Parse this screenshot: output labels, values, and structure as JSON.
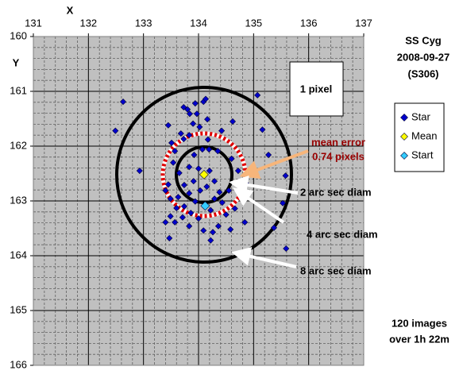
{
  "chart_data": {
    "type": "scatter",
    "title_lines": [
      "SS Cyg",
      "2008-09-27",
      "(S306)"
    ],
    "x_label": "X",
    "y_label": "Y",
    "xlim": [
      131,
      137
    ],
    "ylim": [
      160,
      166
    ],
    "xticks": [
      131,
      132,
      133,
      134,
      135,
      136,
      137
    ],
    "yticks": [
      160,
      161,
      162,
      163,
      164,
      165,
      166
    ],
    "y_reversed": true,
    "x_axis_position": "top",
    "grid": true,
    "legend_position": "right",
    "series": [
      {
        "name": "Star",
        "color": "#0000cc",
        "x": [
          132.63,
          132.49,
          132.93,
          133.4,
          133.47,
          133.45,
          133.51,
          133.57,
          133.68,
          133.73,
          133.8,
          133.84,
          133.94,
          133.97,
          134.09,
          134.13,
          134.02,
          133.9,
          134.16,
          133.83,
          134.17,
          134.07,
          134.19,
          134.35,
          134.42,
          134.62,
          135.07,
          135.16,
          135.27,
          135.58,
          135.53,
          135.37,
          135.59,
          133.73,
          133.92,
          133.83,
          133.65,
          133.74,
          133.83,
          133.91,
          134.0,
          134.2,
          134.29,
          134.38,
          134.29,
          134.15,
          134.03,
          133.94,
          133.74,
          133.6,
          133.49,
          133.45,
          133.54,
          133.4,
          133.63,
          133.86,
          134.0,
          134.22,
          134.43,
          134.55,
          134.66,
          134.5,
          134.36,
          134.26,
          134.22,
          134.58,
          134.84,
          134.72,
          134.6,
          134.86,
          133.57,
          133.83,
          133.71,
          134.09,
          133.49
        ],
        "values": [
          161.19,
          161.72,
          162.45,
          163.39,
          163.68,
          161.62,
          161.94,
          162.09,
          161.77,
          161.29,
          161.33,
          161.41,
          161.22,
          161.41,
          161.19,
          161.14,
          161.65,
          161.59,
          161.51,
          161.8,
          161.88,
          162.06,
          162.06,
          162.09,
          161.72,
          161.55,
          161.07,
          161.7,
          162.16,
          162.54,
          163.04,
          163.49,
          163.87,
          161.87,
          162.16,
          162.38,
          162.49,
          162.71,
          162.86,
          162.64,
          162.41,
          162.45,
          162.64,
          162.84,
          162.96,
          162.74,
          162.81,
          163.01,
          163.1,
          163.13,
          162.96,
          162.7,
          162.3,
          162.81,
          162.93,
          163.22,
          163.32,
          163.17,
          163.03,
          162.81,
          163.14,
          163.25,
          163.46,
          163.57,
          163.72,
          163.52,
          163.39,
          162.45,
          162.23,
          162.68,
          163.39,
          163.46,
          163.3,
          163.54,
          163.28
        ]
      },
      {
        "name": "Mean",
        "color": "#ffff00",
        "x": [
          134.1
        ],
        "values": [
          162.52
        ]
      },
      {
        "name": "Start",
        "color": "#33ccff",
        "x": [
          134.12
        ],
        "values": [
          163.09
        ]
      }
    ],
    "annotations": {
      "box": "1 pixel",
      "mean_error": [
        "mean error",
        "0.74 pixels"
      ],
      "circles": [
        "2 arc sec diam",
        "4 arc sec diam",
        "8 arc sec diam"
      ],
      "footer": [
        "120 images",
        "over 1h 22m"
      ]
    }
  }
}
